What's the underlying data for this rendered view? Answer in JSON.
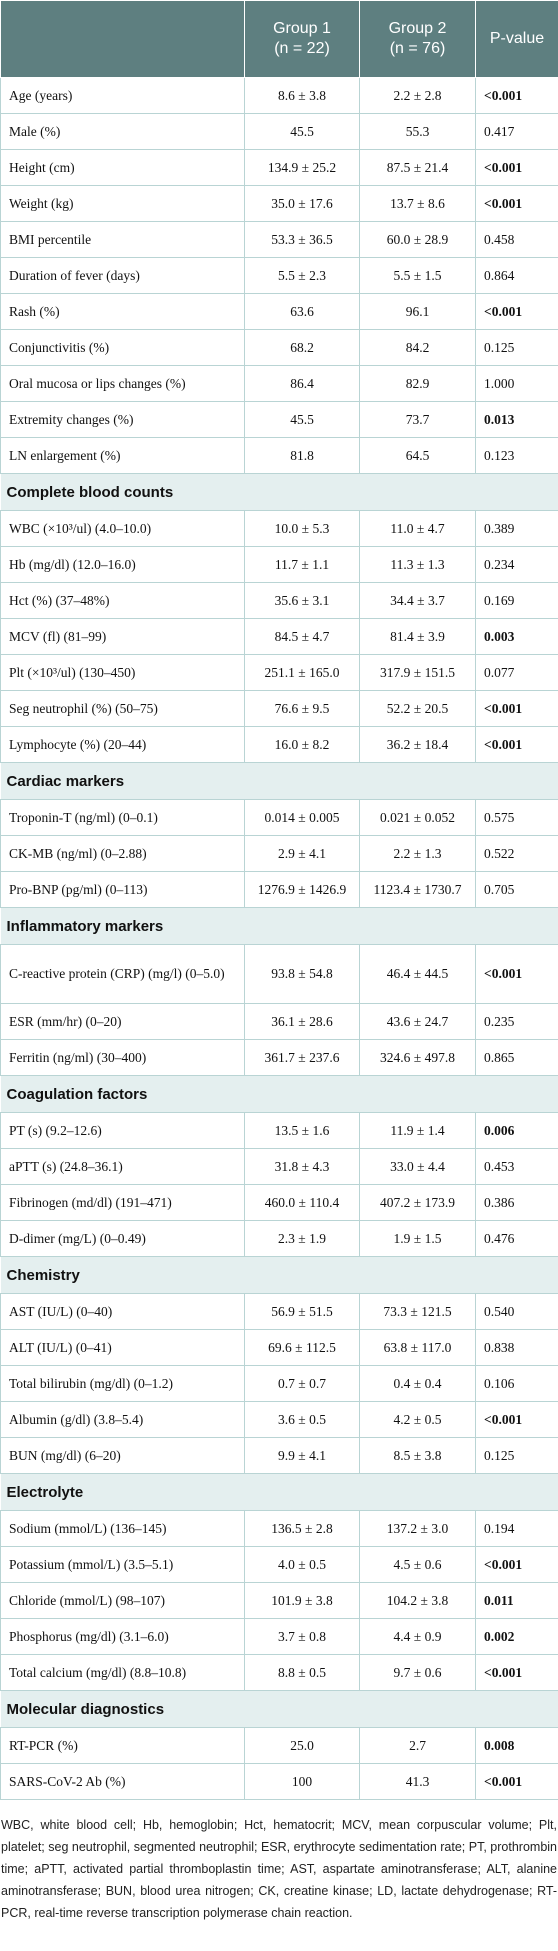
{
  "table": {
    "header": [
      "",
      "Group 1",
      "(n = 22)",
      "Group 2",
      "(n = 76)",
      "P-value"
    ],
    "sections": [
      {
        "title": null,
        "rows": [
          [
            "Age (years)",
            "8.6 ± 3.8",
            "2.2 ± 2.8",
            "<0.001",
            true
          ],
          [
            "Male (%)",
            "45.5",
            "55.3",
            "0.417",
            false
          ],
          [
            "Height (cm)",
            "134.9 ± 25.2",
            "87.5 ± 21.4",
            "<0.001",
            true
          ],
          [
            "Weight (kg)",
            "35.0 ± 17.6",
            "13.7 ± 8.6",
            "<0.001",
            true
          ],
          [
            "BMI percentile",
            "53.3 ± 36.5",
            "60.0 ± 28.9",
            "0.458",
            false
          ],
          [
            "Duration of fever (days)",
            "5.5 ± 2.3",
            "5.5 ± 1.5",
            "0.864",
            false
          ],
          [
            "Rash (%)",
            "63.6",
            "96.1",
            "<0.001",
            true
          ],
          [
            "Conjunctivitis (%)",
            "68.2",
            "84.2",
            "0.125",
            false
          ],
          [
            "Oral mucosa or lips changes (%)",
            "86.4",
            "82.9",
            "1.000",
            false
          ],
          [
            "Extremity changes (%)",
            "45.5",
            "73.7",
            "0.013",
            true
          ],
          [
            "LN enlargement (%)",
            "81.8",
            "64.5",
            "0.123",
            false
          ]
        ]
      },
      {
        "title": "Complete blood counts",
        "rows": [
          [
            "WBC (×10³/ul) (4.0–10.0)",
            "10.0 ± 5.3",
            "11.0 ± 4.7",
            "0.389",
            false
          ],
          [
            "Hb (mg/dl) (12.0–16.0)",
            "11.7 ± 1.1",
            "11.3 ± 1.3",
            "0.234",
            false
          ],
          [
            "Hct (%) (37–48%)",
            "35.6 ± 3.1",
            "34.4 ± 3.7",
            "0.169",
            false
          ],
          [
            "MCV (fl) (81–99)",
            "84.5 ± 4.7",
            "81.4 ± 3.9",
            "0.003",
            true
          ],
          [
            "Plt (×10³/ul) (130–450)",
            "251.1 ± 165.0",
            "317.9 ± 151.5",
            "0.077",
            false
          ],
          [
            "Seg neutrophil (%) (50–75)",
            "76.6 ± 9.5",
            "52.2 ± 20.5",
            "<0.001",
            true
          ],
          [
            "Lymphocyte (%) (20–44)",
            "16.0 ± 8.2",
            "36.2 ± 18.4",
            "<0.001",
            true
          ]
        ]
      },
      {
        "title": "Cardiac markers",
        "rows": [
          [
            "Troponin-T (ng/ml) (0–0.1)",
            "0.014 ± 0.005",
            "0.021 ± 0.052",
            "0.575",
            false
          ],
          [
            "CK-MB (ng/ml) (0–2.88)",
            "2.9 ± 4.1",
            "2.2 ± 1.3",
            "0.522",
            false
          ],
          [
            "Pro-BNP (pg/ml) (0–113)",
            "1276.9 ± 1426.9",
            "1123.4 ± 1730.7",
            "0.705",
            false
          ]
        ]
      },
      {
        "title": "Inflammatory markers",
        "rows": [
          [
            "C-reactive protein (CRP) (mg/l) (0–5.0)",
            "93.8 ± 54.8",
            "46.4 ± 44.5",
            "<0.001",
            true
          ],
          [
            "ESR (mm/hr) (0–20)",
            "36.1 ± 28.6",
            "43.6 ± 24.7",
            "0.235",
            false
          ],
          [
            "Ferritin (ng/ml) (30–400)",
            "361.7 ± 237.6",
            "324.6 ± 497.8",
            "0.865",
            false
          ]
        ]
      },
      {
        "title": "Coagulation factors",
        "rows": [
          [
            "PT (s) (9.2–12.6)",
            "13.5 ± 1.6",
            "11.9 ± 1.4",
            "0.006",
            true
          ],
          [
            "aPTT (s) (24.8–36.1)",
            "31.8 ± 4.3",
            "33.0 ± 4.4",
            "0.453",
            false
          ],
          [
            "Fibrinogen (md/dl) (191–471)",
            "460.0 ± 110.4",
            "407.2 ± 173.9",
            "0.386",
            false
          ],
          [
            "D-dimer (mg/L) (0–0.49)",
            "2.3 ± 1.9",
            "1.9 ± 1.5",
            "0.476",
            false
          ]
        ]
      },
      {
        "title": "Chemistry",
        "rows": [
          [
            "AST (IU/L) (0–40)",
            "56.9 ± 51.5",
            "73.3 ± 121.5",
            "0.540",
            false
          ],
          [
            "ALT (IU/L) (0–41)",
            "69.6 ± 112.5",
            "63.8 ± 117.0",
            "0.838",
            false
          ],
          [
            "Total bilirubin (mg/dl) (0–1.2)",
            "0.7 ± 0.7",
            "0.4 ± 0.4",
            "0.106",
            false
          ],
          [
            "Albumin (g/dl) (3.8–5.4)",
            "3.6 ± 0.5",
            "4.2 ± 0.5",
            "<0.001",
            true
          ],
          [
            "BUN (mg/dl) (6–20)",
            "9.9 ± 4.1",
            "8.5 ± 3.8",
            "0.125",
            false
          ]
        ]
      },
      {
        "title": "Electrolyte",
        "rows": [
          [
            "Sodium (mmol/L) (136–145)",
            "136.5 ± 2.8",
            "137.2 ± 3.0",
            "0.194",
            false
          ],
          [
            "Potassium (mmol/L) (3.5–5.1)",
            "4.0 ± 0.5",
            "4.5 ± 0.6",
            "<0.001",
            true
          ],
          [
            "Chloride (mmol/L) (98–107)",
            "101.9 ± 3.8",
            "104.2 ± 3.8",
            "0.011",
            true
          ],
          [
            "Phosphorus (mg/dl) (3.1–6.0)",
            "3.7 ± 0.8",
            "4.4 ± 0.9",
            "0.002",
            true
          ],
          [
            "Total calcium (mg/dl) (8.8–10.8)",
            "8.8 ± 0.5",
            "9.7 ± 0.6",
            "<0.001",
            true
          ]
        ]
      },
      {
        "title": "Molecular diagnostics",
        "rows": [
          [
            "RT-PCR (%)",
            "25.0",
            "2.7",
            "0.008",
            true
          ],
          [
            "SARS-CoV-2 Ab (%)",
            "100",
            "41.3",
            "<0.001",
            true
          ]
        ]
      }
    ],
    "footnote": "WBC, white blood cell; Hb, hemoglobin; Hct, hematocrit; MCV, mean corpuscular volume; Plt, platelet; seg neutrophil, segmented neutrophil; ESR, erythrocyte sedimentation rate; PT, prothrombin time; aPTT, activated partial thromboplastin time; AST, aspartate aminotransferase; ALT, alanine aminotransferase; BUN, blood urea nitrogen; CK, creatine kinase; LD, lactate dehydrogenase; RT-PCR, real-time reverse transcription polymerase chain reaction."
  }
}
